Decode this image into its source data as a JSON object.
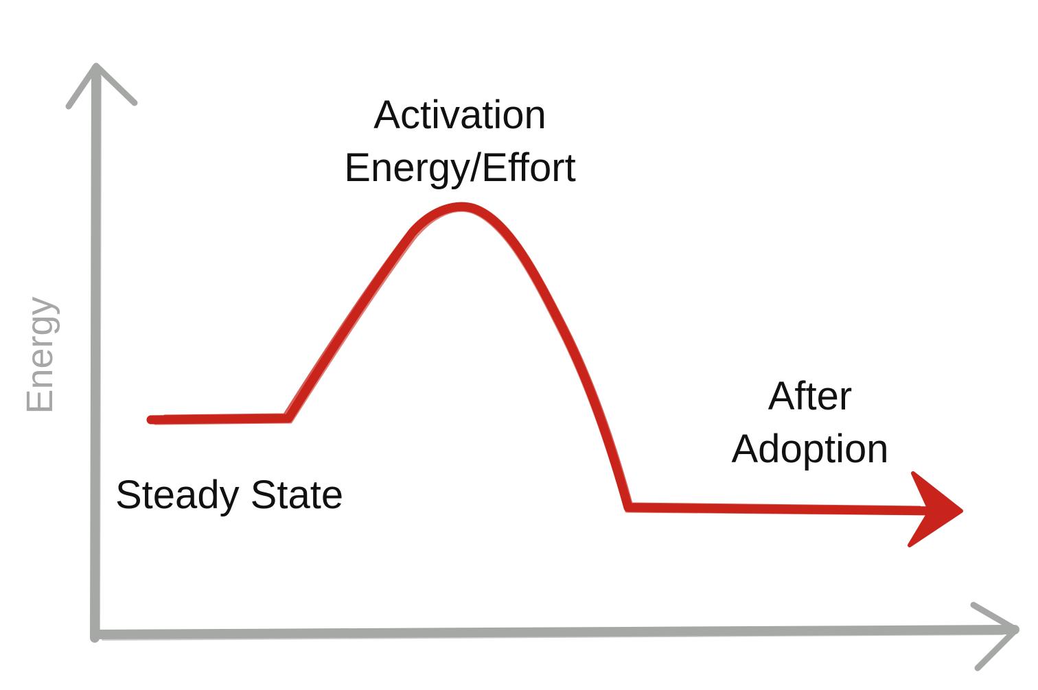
{
  "diagram": {
    "axis_label_y": "Energy",
    "labels": {
      "activation": [
        "Activation",
        "Energy/Effort"
      ],
      "steady_state": "Steady State",
      "after_adoption": [
        "After",
        "Adoption"
      ]
    },
    "colors": {
      "curve": "#c8241b",
      "axis": "#a6a8a6",
      "text": "#111111"
    }
  }
}
